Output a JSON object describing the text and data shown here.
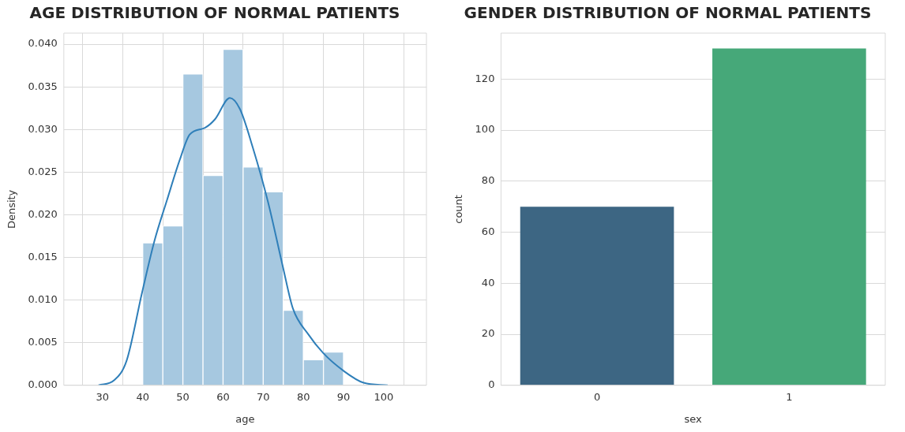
{
  "chart_data": [
    {
      "type": "histogram",
      "title": "AGE DISTRIBUTION OF NORMAL PATIENTS",
      "xlabel": "age",
      "ylabel": "Density",
      "bins": [
        40,
        45,
        50,
        55,
        60,
        65,
        70,
        75,
        80,
        85,
        90
      ],
      "values": [
        0.0167,
        0.0187,
        0.0365,
        0.0246,
        0.0394,
        0.0256,
        0.0227,
        0.0088,
        0.003,
        0.0039
      ],
      "color": "#a6c8e0",
      "series": [
        {
          "type": "line",
          "color": "#2f7fb9",
          "x": [
            29,
            32.9,
            36,
            39.8,
            42.9,
            46.1,
            49.2,
            51.7,
            55.5,
            58,
            61.7,
            64.2,
            67.4,
            71.2,
            74.9,
            77.4,
            81.2,
            84.9,
            90,
            95,
            101
          ],
          "values": [
            0,
            0.0006,
            0.0029,
            0.0108,
            0.0169,
            0.0218,
            0.0264,
            0.0294,
            0.0302,
            0.0312,
            0.0337,
            0.0324,
            0.0279,
            0.0215,
            0.0139,
            0.009,
            0.006,
            0.0038,
            0.0017,
            0.0003,
            0
          ]
        }
      ],
      "xlim": [
        26,
        105
      ],
      "xticks": [
        30,
        40,
        50,
        60,
        70,
        80,
        90,
        100
      ],
      "ylim": [
        0,
        0.0413
      ],
      "yticks": [
        {
          "value": 0,
          "label": "0.000"
        },
        {
          "value": 0.005,
          "label": "0.005"
        },
        {
          "value": 0.01,
          "label": "0.010"
        },
        {
          "value": 0.015,
          "label": "0.015"
        },
        {
          "value": 0.02,
          "label": "0.020"
        },
        {
          "value": 0.025,
          "label": "0.025"
        },
        {
          "value": 0.03,
          "label": "0.030"
        },
        {
          "value": 0.035,
          "label": "0.035"
        },
        {
          "value": 0.04,
          "label": "0.040"
        }
      ],
      "grid": true
    },
    {
      "type": "bar",
      "title": "GENDER DISTRIBUTION OF NORMAL PATIENTS",
      "xlabel": "sex",
      "ylabel": "count",
      "categories": [
        "0",
        "1"
      ],
      "values": [
        70,
        132
      ],
      "colors": [
        "#3d6683",
        "#46a879"
      ],
      "ylim": [
        0,
        138
      ],
      "yticks": [
        0,
        20,
        40,
        60,
        80,
        100,
        120
      ],
      "grid": "y"
    }
  ]
}
